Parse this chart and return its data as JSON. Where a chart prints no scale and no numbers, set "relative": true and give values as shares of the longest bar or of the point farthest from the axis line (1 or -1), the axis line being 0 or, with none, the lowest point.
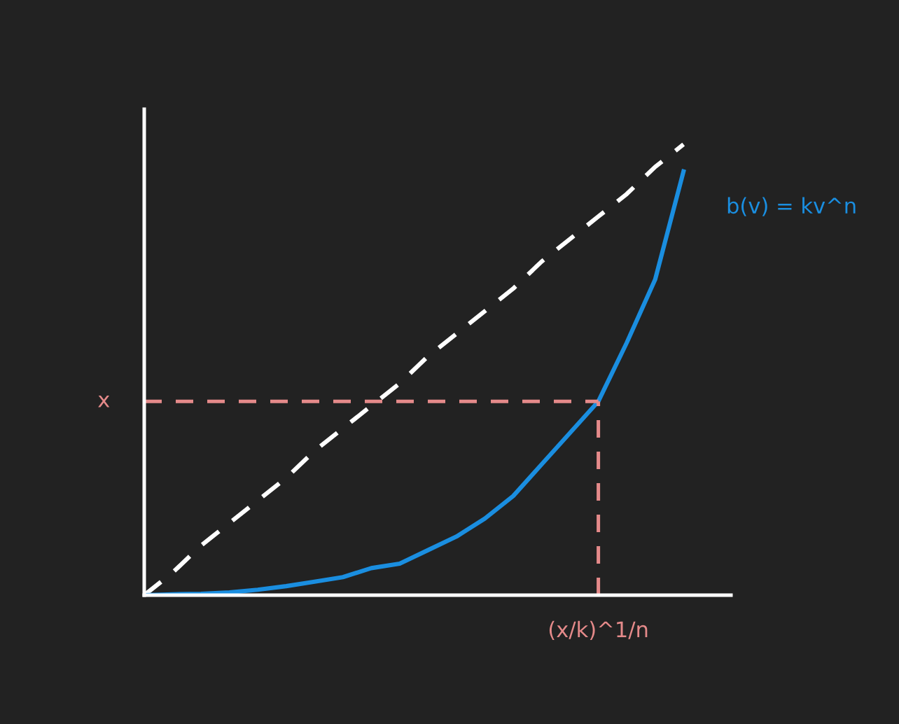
{
  "chart_data": {
    "type": "line",
    "relative": true,
    "categories": [
      null,
      null,
      null,
      null,
      null,
      null,
      null,
      null,
      null,
      null,
      null,
      null,
      null,
      null,
      null,
      null,
      null,
      null,
      null,
      null
    ],
    "series": [
      {
        "color": "#ffffff",
        "line_style": "dashed",
        "values": [
          0,
          0.05,
          0.11,
          0.16,
          0.21,
          0.26,
          0.32,
          0.37,
          0.42,
          0.47,
          0.53,
          0.58,
          0.63,
          0.68,
          0.74,
          0.79,
          0.84,
          0.89,
          0.95,
          1.0
        ]
      },
      {
        "name": "b(v) = kv^n",
        "color": "#1a8ee0",
        "line_style": "solid",
        "values": [
          0,
          0.002,
          0.003,
          0.006,
          0.012,
          0.02,
          0.03,
          0.04,
          0.06,
          0.07,
          0.1,
          0.13,
          0.17,
          0.22,
          0.29,
          0.36,
          0.43,
          0.56,
          0.7,
          0.94
        ]
      }
    ],
    "ref_lines": [
      {
        "axis": "y",
        "value": 0.43,
        "label": "x",
        "color": "#e58a8a",
        "line_style": "dashed"
      }
    ],
    "annotations": [
      "(x/k)^1/n"
    ],
    "legend": false
  }
}
